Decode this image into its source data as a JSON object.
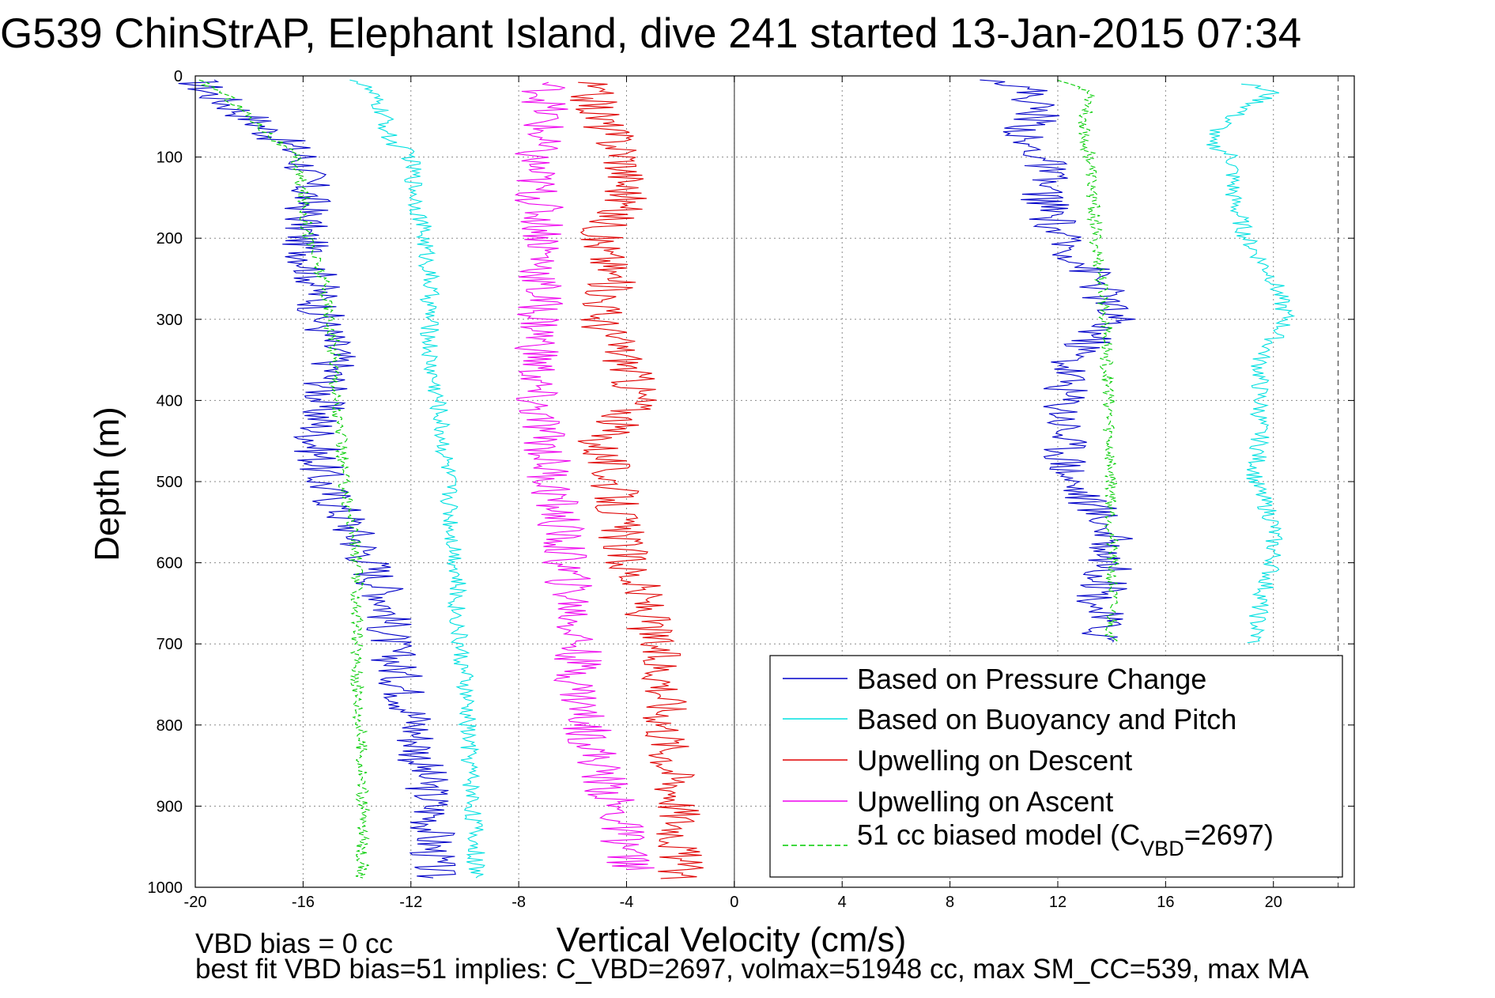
{
  "chart_data": {
    "type": "line",
    "title": "G539 ChinStrAP, Elephant Island, dive 241 started 13-Jan-2015 07:34",
    "xlabel": "Vertical Velocity (cm/s)",
    "ylabel": "Depth (m)",
    "xlim": [
      -20,
      23
    ],
    "ylim": [
      1000,
      0
    ],
    "y_inverted": true,
    "x_ticks": [
      -20,
      -16,
      -12,
      -8,
      -4,
      0,
      4,
      8,
      12,
      16,
      20
    ],
    "y_ticks": [
      0,
      100,
      200,
      300,
      400,
      500,
      600,
      700,
      800,
      900,
      1000
    ],
    "grid": true,
    "legend_position": "bottom-right",
    "reference_lines": [
      {
        "x": 0,
        "style": "solid",
        "color": "#555555"
      },
      {
        "x": 22.4,
        "style": "dashed",
        "color": "#555555"
      }
    ],
    "series": [
      {
        "name": "Based on Pressure Change",
        "color": "#0000c8",
        "dash": "solid",
        "depth": [
          5,
          20,
          50,
          80,
          100,
          150,
          200,
          250,
          300,
          350,
          400,
          450,
          500,
          550,
          600,
          650,
          700,
          750,
          800,
          850,
          900,
          950,
          990
        ],
        "velocity": [
          -20,
          -19.5,
          -18,
          -16.8,
          -16,
          -15.8,
          -16,
          -15.5,
          -15.3,
          -14.8,
          -15.3,
          -15.5,
          -15.3,
          -14.3,
          -13.5,
          -12.8,
          -12.8,
          -12.3,
          -11.8,
          -11.6,
          -11.2,
          -11.2,
          -11.2
        ]
      },
      {
        "name": "Based on Buoyancy and Pitch",
        "color": "#00e0e0",
        "dash": "solid",
        "depth": [
          5,
          20,
          50,
          80,
          90,
          100,
          150,
          200,
          250,
          300,
          350,
          400,
          450,
          500,
          550,
          600,
          650,
          700,
          750,
          800,
          850,
          900,
          950,
          990
        ],
        "velocity": [
          -14,
          -13.5,
          -13,
          -12.8,
          -12.3,
          -12,
          -11.8,
          -11.5,
          -11.3,
          -11.3,
          -11.3,
          -11,
          -10.8,
          -10.6,
          -10.5,
          -10.3,
          -10.3,
          -10.2,
          -10,
          -9.9,
          -9.8,
          -9.7,
          -9.6,
          -9.6
        ]
      },
      {
        "name": "Upwelling on Descent",
        "color": "#e00000",
        "dash": "solid",
        "depth": [
          8,
          50,
          100,
          150,
          200,
          250,
          300,
          350,
          400,
          450,
          500,
          550,
          600,
          650,
          700,
          750,
          800,
          850,
          900,
          950,
          990
        ],
        "velocity": [
          -5.5,
          -5,
          -4,
          -4,
          -5,
          -4.5,
          -5,
          -4,
          -3.5,
          -5,
          -4.5,
          -4.3,
          -4,
          -3.3,
          -3,
          -2.5,
          -2.5,
          -2.3,
          -2,
          -2,
          -2
        ]
      },
      {
        "name": "Upwelling on Ascent",
        "color": "#ee00ee",
        "dash": "solid",
        "depth": [
          8,
          50,
          100,
          150,
          200,
          250,
          300,
          350,
          400,
          450,
          500,
          550,
          600,
          650,
          700,
          750,
          800,
          850,
          900,
          950,
          980
        ],
        "velocity": [
          -7,
          -7,
          -7.5,
          -7.3,
          -7,
          -7.2,
          -7.2,
          -7.3,
          -7.5,
          -7,
          -6.8,
          -6.5,
          -6.3,
          -6,
          -5.8,
          -5.8,
          -5.5,
          -5,
          -4.5,
          -4,
          -3.8
        ]
      },
      {
        "name": "51 cc biased model (C_VBD=2697)",
        "color": "#00cc00",
        "dash": "dashed",
        "depth": [
          5,
          20,
          50,
          80,
          100,
          150,
          200,
          250,
          300,
          350,
          400,
          450,
          500,
          550,
          600,
          650,
          700,
          750,
          800,
          850,
          900,
          950,
          990
        ],
        "velocity": [
          -20,
          -19,
          -18,
          -17,
          -16.3,
          -16,
          -15.8,
          -15.3,
          -15,
          -14.8,
          -14.8,
          -14.6,
          -14.5,
          -14.2,
          -14,
          -14,
          -14,
          -14,
          -13.9,
          -13.8,
          -13.8,
          -13.8,
          -13.8
        ]
      },
      {
        "name": "Based on Pressure Change (ascent)",
        "color": "#0000c8",
        "dash": "solid",
        "depth": [
          5,
          20,
          50,
          80,
          100,
          150,
          200,
          250,
          300,
          350,
          400,
          450,
          500,
          550,
          600,
          650,
          700
        ],
        "velocity": [
          10,
          11,
          11.3,
          10.5,
          11.5,
          11.5,
          12,
          13.5,
          14,
          12.5,
          12.3,
          12.3,
          12.5,
          13.8,
          14,
          13.5,
          13.8
        ]
      },
      {
        "name": "Based on Buoyancy and Pitch (ascent)",
        "color": "#00e0e0",
        "dash": "solid",
        "depth": [
          10,
          20,
          50,
          80,
          100,
          150,
          200,
          250,
          300,
          350,
          400,
          450,
          500,
          550,
          600,
          650,
          700
        ],
        "velocity": [
          19,
          20,
          18.5,
          17.5,
          18.5,
          18.5,
          19,
          20,
          20.5,
          19.5,
          19.5,
          19.5,
          19.3,
          20,
          20,
          19.5,
          19.3
        ]
      },
      {
        "name": "51 cc biased model (ascent)",
        "color": "#00cc00",
        "dash": "dashed",
        "depth": [
          5,
          20,
          50,
          80,
          100,
          150,
          200,
          250,
          300,
          350,
          400,
          450,
          500,
          550,
          600,
          650,
          700
        ],
        "velocity": [
          12,
          13.3,
          13,
          13,
          13.2,
          13.3,
          13.4,
          13.6,
          13.8,
          13.8,
          13.9,
          13.9,
          14,
          14,
          14,
          14,
          14
        ]
      }
    ],
    "legend_entries": [
      {
        "label": "Based on Pressure Change",
        "color": "#0000c8",
        "dash": "solid"
      },
      {
        "label": "Based on Buoyancy and Pitch",
        "color": "#00e0e0",
        "dash": "solid"
      },
      {
        "label": "Upwelling on Descent",
        "color": "#e00000",
        "dash": "solid"
      },
      {
        "label": "Upwelling on Ascent",
        "color": "#ee00ee",
        "dash": "solid"
      },
      {
        "label_prefix": "51 cc biased model (C",
        "label_sub": "VBD",
        "label_suffix": "=2697)",
        "color": "#00cc00",
        "dash": "dashed"
      }
    ],
    "annotations": [
      "VBD bias = 0 cc",
      "best fit VBD bias=51 implies: C_VBD=2697, volmax=51948 cc, max SM_CC=539, max MA"
    ]
  }
}
